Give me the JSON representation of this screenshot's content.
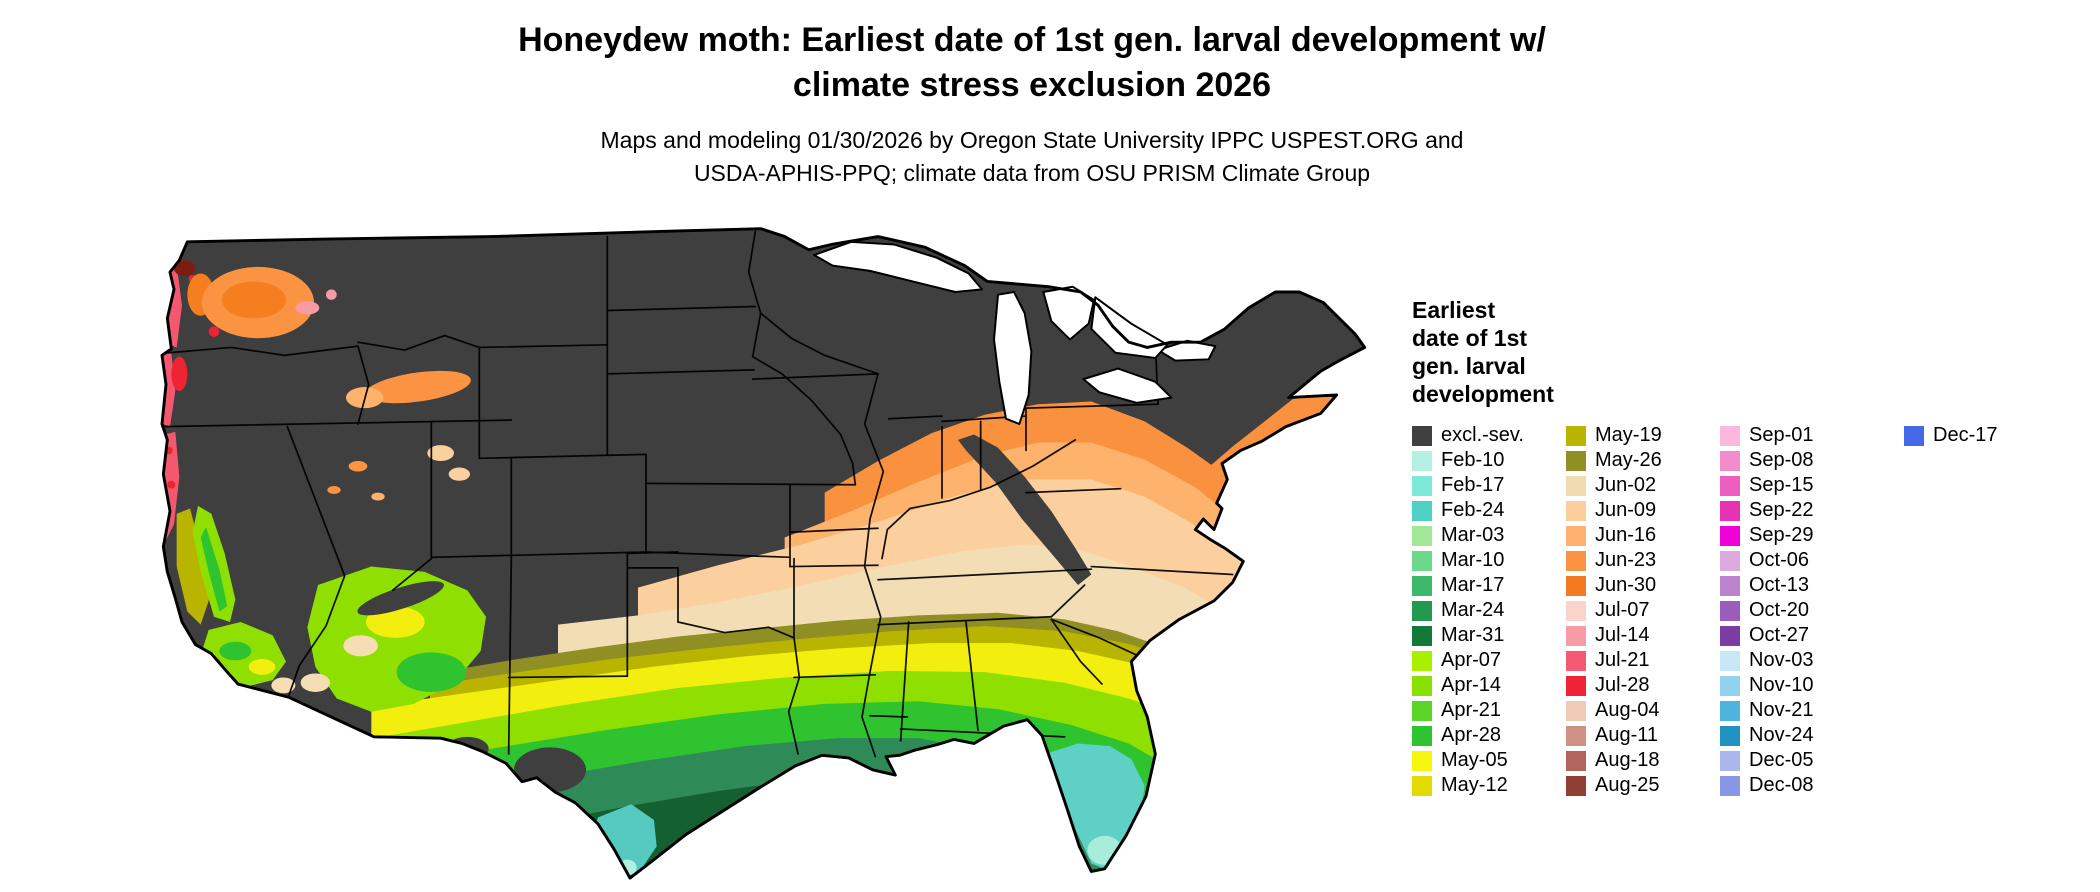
{
  "header": {
    "title_line1": "Honeydew moth: Earliest date of 1st gen. larval development w/",
    "title_line2": "climate stress exclusion 2026",
    "subtitle_line1": "Maps and modeling 01/30/2026 by Oregon State University IPPC USPEST.ORG and",
    "subtitle_line2": "USDA-APHIS-PPQ; climate data from OSU PRISM Climate Group"
  },
  "legend": {
    "title_lines": [
      "Earliest",
      "date of 1st",
      "gen. larval",
      "development"
    ],
    "columns": [
      {
        "items": [
          {
            "label": "excl.-sev.",
            "color": "#404040"
          },
          {
            "label": "Feb-10",
            "color": "#b4f0e4"
          },
          {
            "label": "Feb-17",
            "color": "#7de8d8"
          },
          {
            "label": "Feb-24",
            "color": "#4fd0c5"
          },
          {
            "label": "Mar-03",
            "color": "#a2e697"
          },
          {
            "label": "Mar-10",
            "color": "#6cd98a"
          },
          {
            "label": "Mar-17",
            "color": "#3cb86b"
          },
          {
            "label": "Mar-24",
            "color": "#23984f"
          },
          {
            "label": "Mar-31",
            "color": "#117a38"
          },
          {
            "label": "Apr-07",
            "color": "#a8f000"
          },
          {
            "label": "Apr-14",
            "color": "#8ae000"
          },
          {
            "label": "Apr-21",
            "color": "#5cd428"
          },
          {
            "label": "Apr-28",
            "color": "#2fc32f"
          },
          {
            "label": "May-05",
            "color": "#f6f60c"
          },
          {
            "label": "May-12",
            "color": "#e3da00"
          }
        ]
      },
      {
        "items": [
          {
            "label": "May-19",
            "color": "#b8b400"
          },
          {
            "label": "May-26",
            "color": "#8f8f23"
          },
          {
            "label": "Jun-02",
            "color": "#f0dcb0"
          },
          {
            "label": "Jun-09",
            "color": "#fbce9c"
          },
          {
            "label": "Jun-16",
            "color": "#fdb272"
          },
          {
            "label": "Jun-23",
            "color": "#fb9442"
          },
          {
            "label": "Jun-30",
            "color": "#f27b21"
          },
          {
            "label": "Jul-07",
            "color": "#fad4cc"
          },
          {
            "label": "Jul-14",
            "color": "#f79ba4"
          },
          {
            "label": "Jul-21",
            "color": "#f45a72"
          },
          {
            "label": "Jul-28",
            "color": "#ee2435"
          },
          {
            "label": "Aug-04",
            "color": "#f2cab8"
          },
          {
            "label": "Aug-11",
            "color": "#cf9086"
          },
          {
            "label": "Aug-18",
            "color": "#b2655c"
          },
          {
            "label": "Aug-25",
            "color": "#8f3f33"
          }
        ]
      },
      {
        "items": [
          {
            "label": "Sep-01",
            "color": "#fcb8dc"
          },
          {
            "label": "Sep-08",
            "color": "#f28cca"
          },
          {
            "label": "Sep-15",
            "color": "#ec5fc0"
          },
          {
            "label": "Sep-22",
            "color": "#e832b4"
          },
          {
            "label": "Sep-29",
            "color": "#f000d8"
          },
          {
            "label": "Oct-06",
            "color": "#dcaade"
          },
          {
            "label": "Oct-13",
            "color": "#bc84cc"
          },
          {
            "label": "Oct-20",
            "color": "#9c5cba"
          },
          {
            "label": "Oct-27",
            "color": "#7c3ca4"
          },
          {
            "label": "Nov-03",
            "color": "#c8e8f8"
          },
          {
            "label": "Nov-10",
            "color": "#92d2ee"
          },
          {
            "label": "Nov-21",
            "color": "#4fb4dc"
          },
          {
            "label": "Nov-24",
            "color": "#2292c4"
          },
          {
            "label": "Dec-05",
            "color": "#aab6ec"
          },
          {
            "label": "Dec-08",
            "color": "#8896e6"
          }
        ]
      },
      {
        "items": [
          {
            "label": "Dec-17",
            "color": "#4468e8"
          }
        ]
      }
    ]
  }
}
